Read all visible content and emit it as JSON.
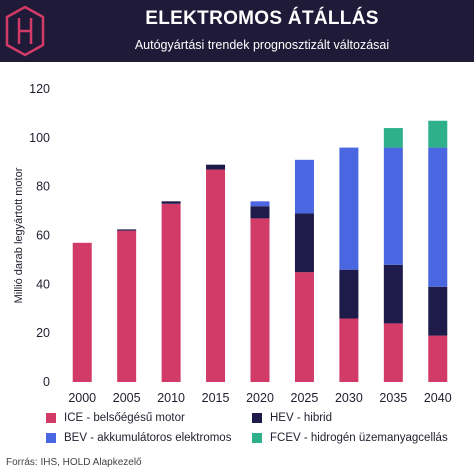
{
  "header": {
    "title": "ELEKTROMOS ÁTÁLLÁS",
    "subtitle": "Autógyártási trendek prognosztizált változásai",
    "logo_icon": "hold-h-logo-icon"
  },
  "chart_data": {
    "type": "bar",
    "stacked": true,
    "categories": [
      "2000",
      "2005",
      "2010",
      "2015",
      "2020",
      "2025",
      "2030",
      "2035",
      "2040"
    ],
    "ylabel": "Millió darab legyártott motor",
    "xlabel": "",
    "ylim": [
      0,
      120
    ],
    "yticks": [
      0,
      20,
      40,
      60,
      80,
      100,
      120
    ],
    "grid": false,
    "legend_position": "bottom",
    "series": [
      {
        "name": "ICE - belsőégésű motor",
        "color": "#d23a68",
        "values": [
          57,
          62,
          73,
          87,
          67,
          45,
          26,
          24,
          19
        ]
      },
      {
        "name": "HEV - hibrid",
        "color": "#1e1a4a",
        "values": [
          0,
          0.5,
          1,
          2,
          5,
          24,
          20,
          24,
          20
        ]
      },
      {
        "name": "BEV - akkumulátoros elektromos",
        "color": "#4a66e0",
        "values": [
          0,
          0,
          0,
          0,
          2,
          22,
          50,
          48,
          57
        ]
      },
      {
        "name": "FCEV - hidrogén üzemanyagcellás",
        "color": "#2eb08a",
        "values": [
          0,
          0,
          0,
          0,
          0,
          0,
          0,
          8,
          11
        ]
      }
    ]
  },
  "source": "Forrás: IHS, HOLD Alapkezelő"
}
